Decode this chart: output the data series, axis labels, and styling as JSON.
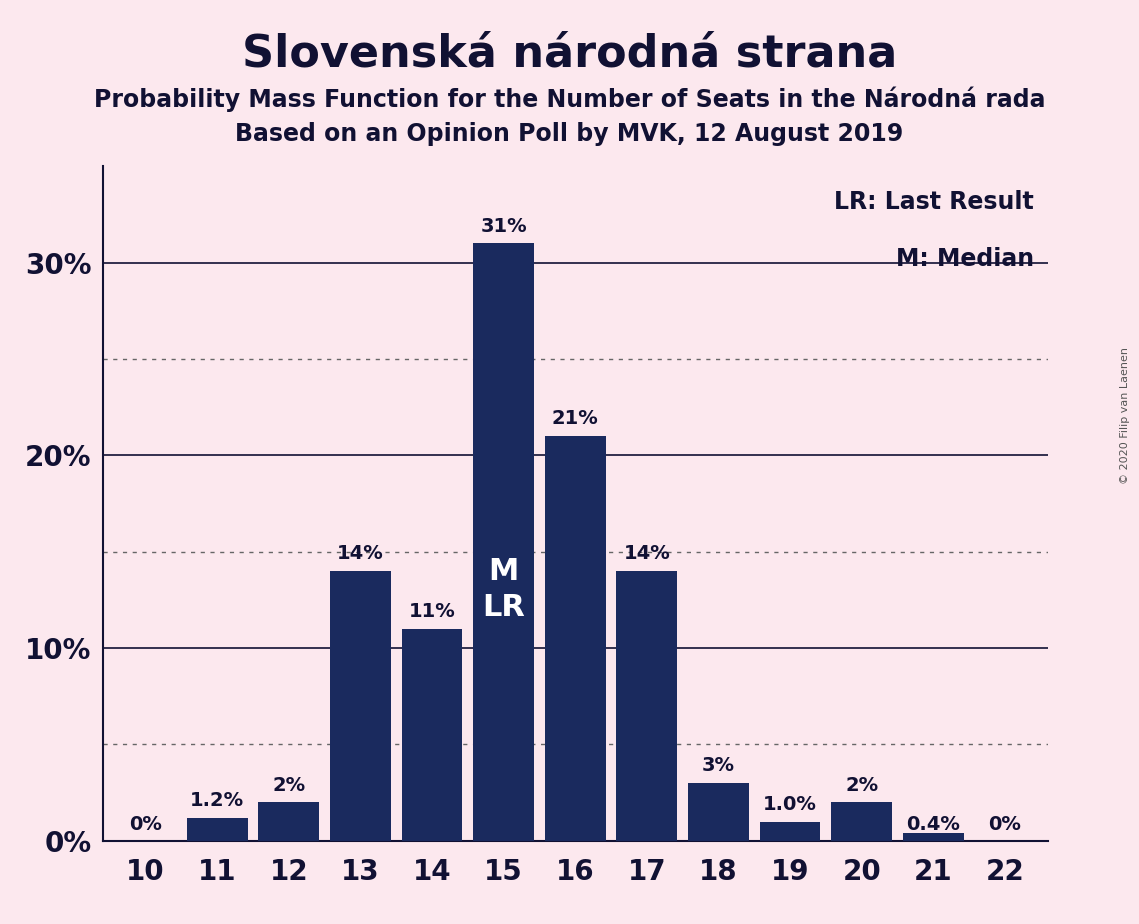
{
  "title": "Slovenská národná strana",
  "subtitle1": "Probability Mass Function for the Number of Seats in the Národná rada",
  "subtitle2": "Based on an Opinion Poll by MVK, 12 August 2019",
  "copyright": "© 2020 Filip van Laenen",
  "categories": [
    10,
    11,
    12,
    13,
    14,
    15,
    16,
    17,
    18,
    19,
    20,
    21,
    22
  ],
  "values": [
    0.0,
    1.2,
    2.0,
    14.0,
    11.0,
    31.0,
    21.0,
    14.0,
    3.0,
    1.0,
    2.0,
    0.4,
    0.0
  ],
  "labels": [
    "0%",
    "1.2%",
    "2%",
    "14%",
    "11%",
    "31%",
    "21%",
    "14%",
    "3%",
    "1.0%",
    "2%",
    "0.4%",
    "0%"
  ],
  "bar_color": "#1a2a5e",
  "background_color": "#fce8ee",
  "text_color": "#111133",
  "ylim": [
    0,
    35
  ],
  "solid_yticks": [
    10,
    20,
    30
  ],
  "dotted_yticks": [
    5,
    15,
    25
  ],
  "ytick_labels": [
    "0%",
    "10%",
    "20%",
    "30%"
  ],
  "ytick_positions": [
    0,
    10,
    20,
    30
  ],
  "median_bar": 15,
  "last_result_bar": 15,
  "legend_lr": "LR: Last Result",
  "legend_m": "M: Median",
  "title_fontsize": 32,
  "subtitle_fontsize": 17,
  "label_fontsize": 14,
  "tick_fontsize": 20,
  "legend_fontsize": 17,
  "ml_fontsize": 22
}
